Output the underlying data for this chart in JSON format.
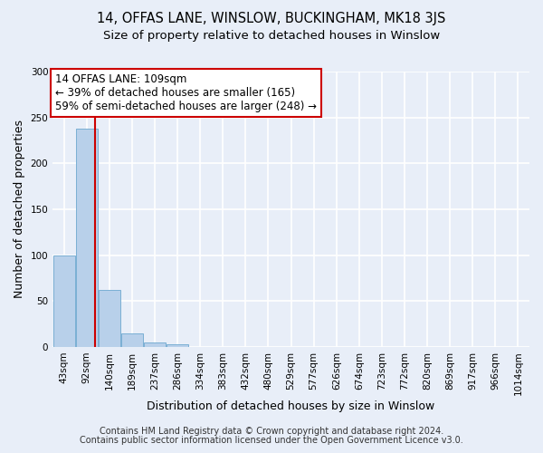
{
  "title": "14, OFFAS LANE, WINSLOW, BUCKINGHAM, MK18 3JS",
  "subtitle": "Size of property relative to detached houses in Winslow",
  "xlabel": "Distribution of detached houses by size in Winslow",
  "ylabel": "Number of detached properties",
  "bar_labels": [
    "43sqm",
    "92sqm",
    "140sqm",
    "189sqm",
    "237sqm",
    "286sqm",
    "334sqm",
    "383sqm",
    "432sqm",
    "480sqm",
    "529sqm",
    "577sqm",
    "626sqm",
    "674sqm",
    "723sqm",
    "772sqm",
    "820sqm",
    "869sqm",
    "917sqm",
    "966sqm",
    "1014sqm"
  ],
  "bar_values": [
    100,
    238,
    62,
    15,
    5,
    3,
    0,
    0,
    0,
    0,
    0,
    0,
    0,
    0,
    0,
    0,
    0,
    0,
    0,
    0,
    0
  ],
  "bar_color": "#b8d0ea",
  "bar_edge_color": "#7aafd4",
  "ylim": [
    0,
    300
  ],
  "yticks": [
    0,
    50,
    100,
    150,
    200,
    250,
    300
  ],
  "property_line_bin": 1.35,
  "property_line_color": "#cc0000",
  "annotation_text": "14 OFFAS LANE: 109sqm\n← 39% of detached houses are smaller (165)\n59% of semi-detached houses are larger (248) →",
  "annotation_box_color": "#ffffff",
  "annotation_box_edge_color": "#cc0000",
  "footer1": "Contains HM Land Registry data © Crown copyright and database right 2024.",
  "footer2": "Contains public sector information licensed under the Open Government Licence v3.0.",
  "bg_color": "#e8eef8",
  "plot_bg_color": "#e8eef8",
  "title_fontsize": 10.5,
  "subtitle_fontsize": 9.5,
  "axis_label_fontsize": 9,
  "tick_fontsize": 7.5,
  "annotation_fontsize": 8.5,
  "footer_fontsize": 7,
  "grid_color": "#ffffff",
  "grid_linewidth": 1.2
}
